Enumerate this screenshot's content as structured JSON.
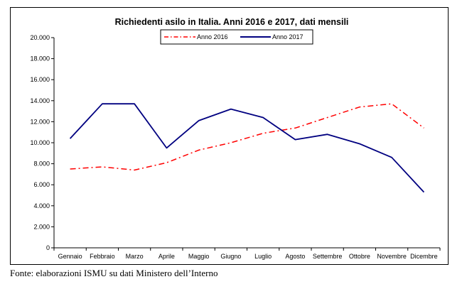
{
  "source_note": "Fonte: elaborazioni ISMU su dati Ministero dell’Interno",
  "chart_data": {
    "type": "line",
    "title": "Richiedenti asilo in Italia. Anni 2016 e 2017, dati mensili",
    "xlabel": "",
    "ylabel": "",
    "categories": [
      "Gennaio",
      "Febbraio",
      "Marzo",
      "Aprile",
      "Maggio",
      "Giugno",
      "Luglio",
      "Agosto",
      "Settembre",
      "Ottobre",
      "Novembre",
      "Dicembre"
    ],
    "ylim": [
      0,
      20000
    ],
    "yticks": [
      0,
      2000,
      4000,
      6000,
      8000,
      10000,
      12000,
      14000,
      16000,
      18000,
      20000
    ],
    "ytick_labels": [
      "0",
      "2.000",
      "4.000",
      "6.000",
      "8.000",
      "10.000",
      "12.000",
      "14.000",
      "16.000",
      "18.000",
      "20.000"
    ],
    "grid": false,
    "legend_position": "top-center",
    "series": [
      {
        "name": "Anno 2016",
        "color": "#ff0000",
        "style": "dash-dot",
        "values": [
          7500,
          7700,
          7400,
          8100,
          9300,
          10000,
          10900,
          11400,
          12400,
          13400,
          13700,
          11400
        ]
      },
      {
        "name": "Anno 2017",
        "color": "#000080",
        "style": "solid",
        "values": [
          10400,
          13700,
          13700,
          9500,
          12100,
          13200,
          12400,
          10300,
          10800,
          9900,
          8600,
          5300
        ]
      }
    ]
  }
}
